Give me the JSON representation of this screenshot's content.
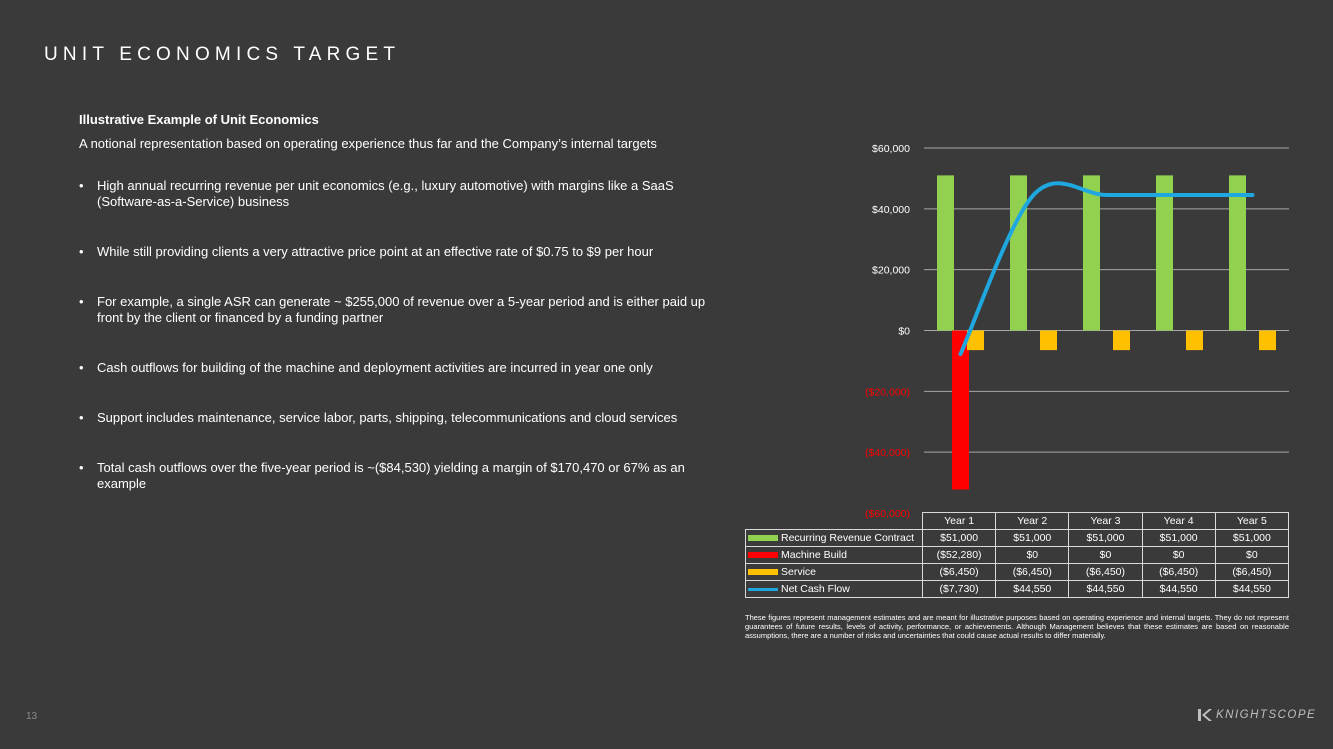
{
  "title": "UNIT ECONOMICS TARGET",
  "subtitle": "Illustrative Example of Unit Economics",
  "intro": "A notional representation based on operating experience thus far and the Company’s internal targets",
  "bullets": [
    "High annual recurring revenue per unit economics (e.g., luxury automotive) with margins like a SaaS (Software-as-a-Service) business",
    "While still providing clients a very attractive price point at an effective rate of $0.75 to $9 per hour",
    "For example, a single ASR can generate ~ $255,000 of revenue over a 5-year period and is either paid up front by the client or financed by a funding partner",
    "Cash outflows for building of the machine and deployment activities are incurred in year one only",
    "Support includes maintenance, service labor, parts, shipping, telecommunications and cloud services",
    "Total cash outflows over the five-year period is ~($84,530) yielding a margin of $170,470 or 67% as an example"
  ],
  "chart_data": {
    "type": "bar",
    "categories": [
      "Year 1",
      "Year 2",
      "Year 3",
      "Year 4",
      "Year 5"
    ],
    "series": [
      {
        "name": "Recurring Revenue Contract",
        "kind": "bar",
        "color": "#92d050",
        "values": [
          51000,
          51000,
          51000,
          51000,
          51000
        ],
        "labels": [
          "$51,000",
          "$51,000",
          "$51,000",
          "$51,000",
          "$51,000"
        ]
      },
      {
        "name": "Machine Build",
        "kind": "bar",
        "color": "#ff0000",
        "values": [
          -52280,
          0,
          0,
          0,
          0
        ],
        "labels": [
          "($52,280)",
          "$0",
          "$0",
          "$0",
          "$0"
        ]
      },
      {
        "name": "Service",
        "kind": "bar",
        "color": "#ffc000",
        "values": [
          -6450,
          -6450,
          -6450,
          -6450,
          -6450
        ],
        "labels": [
          "($6,450)",
          "($6,450)",
          "($6,450)",
          "($6,450)",
          "($6,450)"
        ]
      },
      {
        "name": "Net Cash Flow",
        "kind": "line",
        "color": "#1fa8e0",
        "values": [
          -7730,
          44550,
          44550,
          44550,
          44550
        ],
        "labels": [
          "($7,730)",
          "$44,550",
          "$44,550",
          "$44,550",
          "$44,550"
        ]
      }
    ],
    "ylim": [
      -60000,
      60000
    ],
    "yticks": [
      60000,
      40000,
      20000,
      0,
      -20000,
      -40000,
      -60000
    ],
    "ytick_labels": [
      "$60,000",
      "$40,000",
      "$20,000",
      "$0",
      "($20,000)",
      "($40,000)",
      "($60,000)"
    ],
    "grid": true,
    "legend": "data table below chart"
  },
  "disclaimer": "These figures represent management estimates and are meant for illustrative purposes based on operating experience and internal targets. They do not represent guarantees of future results, levels of activity, performance, or achievements. Although Management believes that these estimates are based on reasonable assumptions, there are a number of risks and uncertainties that could cause actual results to differ materially.",
  "page_number": "13",
  "logo_text": "KNIGHTSCOPE"
}
